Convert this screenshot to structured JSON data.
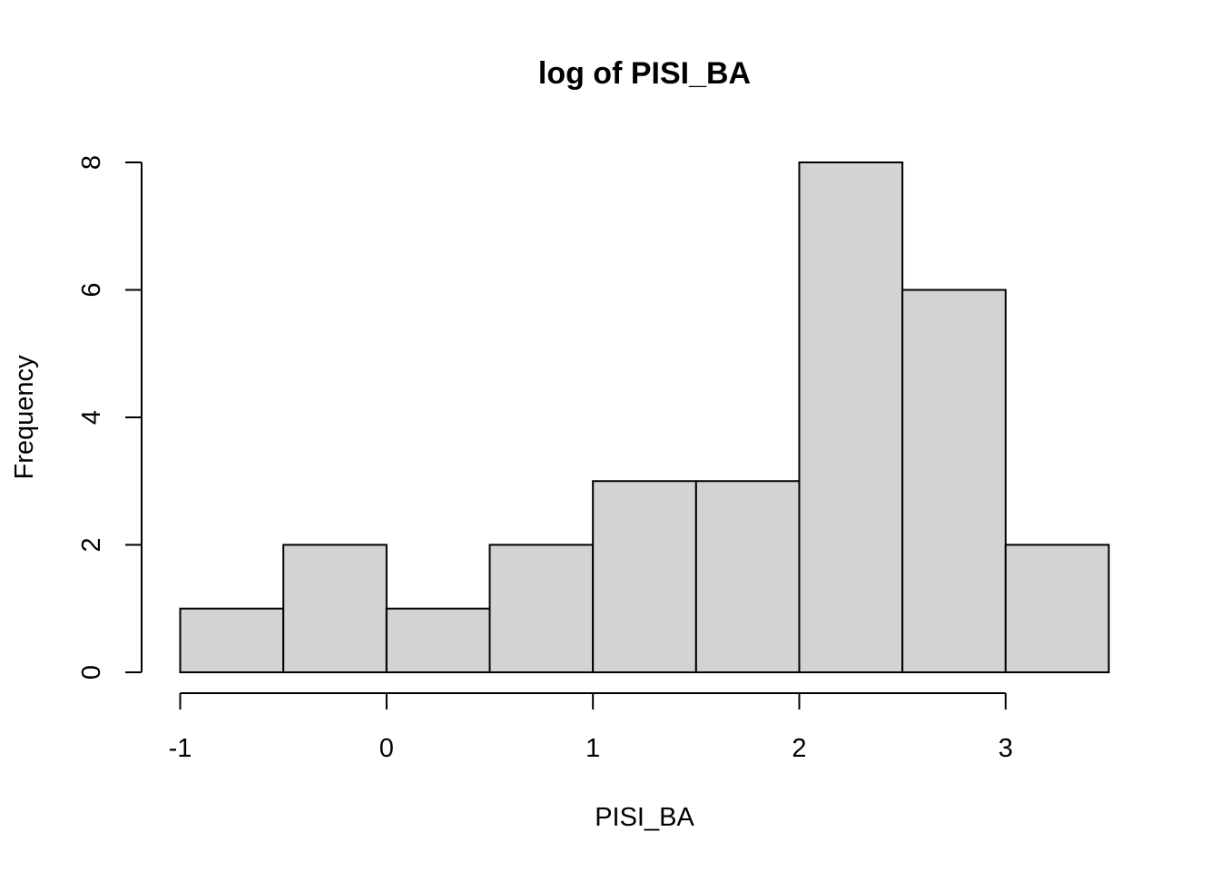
{
  "chart_data": {
    "type": "bar",
    "title": "log of PISI_BA",
    "xlabel": "PISI_BA",
    "ylabel": "Frequency",
    "bins": [
      {
        "start": -1.0,
        "end": -0.5,
        "count": 1
      },
      {
        "start": -0.5,
        "end": 0.0,
        "count": 2
      },
      {
        "start": 0.0,
        "end": 0.5,
        "count": 1
      },
      {
        "start": 0.5,
        "end": 1.0,
        "count": 2
      },
      {
        "start": 1.0,
        "end": 1.5,
        "count": 3
      },
      {
        "start": 1.5,
        "end": 2.0,
        "count": 3
      },
      {
        "start": 2.0,
        "end": 2.5,
        "count": 8
      },
      {
        "start": 2.5,
        "end": 3.0,
        "count": 6
      },
      {
        "start": 3.0,
        "end": 3.5,
        "count": 2
      }
    ],
    "x_ticks": [
      -1,
      0,
      1,
      2,
      3
    ],
    "x_tick_labels": [
      "-1",
      "0",
      "1",
      "2",
      "3"
    ],
    "y_ticks": [
      0,
      2,
      4,
      6,
      8
    ],
    "y_tick_labels": [
      "0",
      "2",
      "4",
      "6",
      "8"
    ],
    "xlim": [
      -1.0,
      3.5
    ],
    "ylim": [
      0,
      8
    ],
    "bar_fill": "#d3d3d3",
    "bar_stroke": "#000000",
    "grid": false,
    "legend": "none"
  }
}
